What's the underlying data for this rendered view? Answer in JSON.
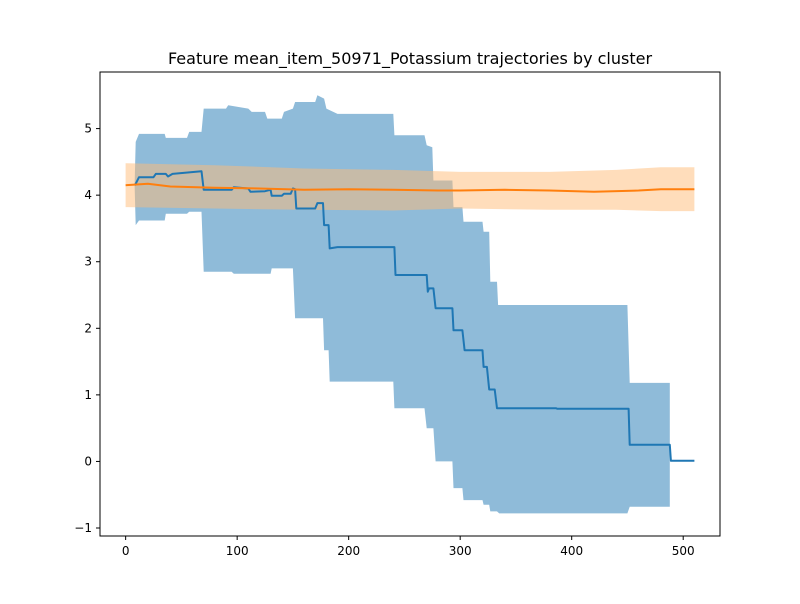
{
  "chart_data": {
    "type": "line",
    "title": "Feature mean_item_50971_Potassium trajectories by cluster",
    "xlabel": "",
    "ylabel": "",
    "xlim": [
      -23,
      533
    ],
    "ylim": [
      -1.12,
      5.85
    ],
    "xticks": [
      0,
      100,
      200,
      300,
      400,
      500
    ],
    "yticks": [
      -1,
      0,
      1,
      2,
      3,
      4,
      5
    ],
    "ytick_labels": [
      "−1",
      "0",
      "1",
      "2",
      "3",
      "4",
      "5"
    ],
    "grid": false,
    "legend": "none",
    "series": [
      {
        "color": "#1f77b4",
        "band_color": "#1f77b4",
        "line": [
          [
            8,
            4.15
          ],
          [
            9,
            4.17
          ],
          [
            12,
            4.27
          ],
          [
            25,
            4.27
          ],
          [
            27,
            4.32
          ],
          [
            36,
            4.32
          ],
          [
            38,
            4.28
          ],
          [
            42,
            4.32
          ],
          [
            68,
            4.36
          ],
          [
            70,
            4.08
          ],
          [
            95,
            4.08
          ],
          [
            97,
            4.12
          ],
          [
            110,
            4.1
          ],
          [
            112,
            4.05
          ],
          [
            125,
            4.06
          ],
          [
            130,
            4.08
          ],
          [
            131,
            3.99
          ],
          [
            140,
            3.99
          ],
          [
            142,
            4.02
          ],
          [
            148,
            4.02
          ],
          [
            150,
            4.1
          ],
          [
            152,
            4.09
          ],
          [
            153,
            3.8
          ],
          [
            170,
            3.8
          ],
          [
            172,
            3.88
          ],
          [
            177,
            3.88
          ],
          [
            178,
            3.55
          ],
          [
            182,
            3.55
          ],
          [
            183,
            3.2
          ],
          [
            190,
            3.22
          ],
          [
            241,
            3.22
          ],
          [
            242,
            2.8
          ],
          [
            270,
            2.8
          ],
          [
            271,
            2.55
          ],
          [
            272,
            2.6
          ],
          [
            276,
            2.6
          ],
          [
            278,
            2.3
          ],
          [
            293,
            2.3
          ],
          [
            294,
            1.97
          ],
          [
            302,
            1.97
          ],
          [
            304,
            1.67
          ],
          [
            320,
            1.67
          ],
          [
            321,
            1.42
          ],
          [
            324,
            1.42
          ],
          [
            326,
            1.08
          ],
          [
            331,
            1.08
          ],
          [
            333,
            0.8
          ],
          [
            386,
            0.8
          ],
          [
            387,
            0.79
          ],
          [
            451,
            0.79
          ],
          [
            452,
            0.25
          ],
          [
            488,
            0.25
          ],
          [
            489,
            0.01
          ],
          [
            510,
            0.01
          ]
        ],
        "upper": [
          [
            8,
            4.15
          ],
          [
            9,
            4.8
          ],
          [
            12,
            4.92
          ],
          [
            35,
            4.92
          ],
          [
            36,
            4.86
          ],
          [
            55,
            4.86
          ],
          [
            57,
            4.95
          ],
          [
            68,
            4.95
          ],
          [
            70,
            5.3
          ],
          [
            90,
            5.3
          ],
          [
            92,
            5.35
          ],
          [
            110,
            5.3
          ],
          [
            113,
            5.25
          ],
          [
            125,
            5.25
          ],
          [
            127,
            5.15
          ],
          [
            140,
            5.15
          ],
          [
            142,
            5.25
          ],
          [
            150,
            5.3
          ],
          [
            152,
            5.4
          ],
          [
            170,
            5.4
          ],
          [
            172,
            5.5
          ],
          [
            178,
            5.45
          ],
          [
            180,
            5.3
          ],
          [
            190,
            5.22
          ],
          [
            240,
            5.22
          ],
          [
            241,
            4.9
          ],
          [
            268,
            4.9
          ],
          [
            270,
            4.75
          ],
          [
            275,
            4.72
          ],
          [
            276,
            4.22
          ],
          [
            293,
            4.22
          ],
          [
            294,
            3.82
          ],
          [
            302,
            3.82
          ],
          [
            303,
            3.6
          ],
          [
            320,
            3.6
          ],
          [
            321,
            3.45
          ],
          [
            326,
            3.45
          ],
          [
            327,
            2.7
          ],
          [
            333,
            2.7
          ],
          [
            334,
            2.35
          ],
          [
            450,
            2.35
          ],
          [
            452,
            1.18
          ],
          [
            488,
            1.18
          ]
        ],
        "lower": [
          [
            8,
            4.15
          ],
          [
            9,
            3.55
          ],
          [
            12,
            3.62
          ],
          [
            35,
            3.62
          ],
          [
            36,
            3.72
          ],
          [
            55,
            3.72
          ],
          [
            57,
            3.75
          ],
          [
            68,
            3.75
          ],
          [
            70,
            2.85
          ],
          [
            95,
            2.85
          ],
          [
            97,
            2.82
          ],
          [
            130,
            2.82
          ],
          [
            131,
            2.9
          ],
          [
            150,
            2.9
          ],
          [
            152,
            2.15
          ],
          [
            177,
            2.15
          ],
          [
            178,
            1.67
          ],
          [
            182,
            1.67
          ],
          [
            183,
            1.2
          ],
          [
            240,
            1.2
          ],
          [
            241,
            0.8
          ],
          [
            268,
            0.8
          ],
          [
            270,
            0.5
          ],
          [
            276,
            0.5
          ],
          [
            278,
            0.0
          ],
          [
            293,
            0.0
          ],
          [
            294,
            -0.4
          ],
          [
            302,
            -0.4
          ],
          [
            303,
            -0.58
          ],
          [
            320,
            -0.58
          ],
          [
            321,
            -0.65
          ],
          [
            326,
            -0.65
          ],
          [
            327,
            -0.75
          ],
          [
            333,
            -0.75
          ],
          [
            335,
            -0.78
          ],
          [
            450,
            -0.78
          ],
          [
            452,
            -0.68
          ],
          [
            488,
            -0.68
          ]
        ]
      },
      {
        "color": "#ff7f0e",
        "band_color": "#ffbb78",
        "line": [
          [
            0,
            4.15
          ],
          [
            20,
            4.17
          ],
          [
            40,
            4.13
          ],
          [
            80,
            4.11
          ],
          [
            120,
            4.1
          ],
          [
            160,
            4.08
          ],
          [
            200,
            4.09
          ],
          [
            240,
            4.08
          ],
          [
            280,
            4.07
          ],
          [
            300,
            4.07
          ],
          [
            340,
            4.08
          ],
          [
            380,
            4.07
          ],
          [
            420,
            4.05
          ],
          [
            460,
            4.07
          ],
          [
            480,
            4.09
          ],
          [
            510,
            4.09
          ]
        ],
        "upper": [
          [
            0,
            4.48
          ],
          [
            80,
            4.45
          ],
          [
            160,
            4.4
          ],
          [
            240,
            4.38
          ],
          [
            300,
            4.35
          ],
          [
            380,
            4.35
          ],
          [
            440,
            4.38
          ],
          [
            480,
            4.42
          ],
          [
            510,
            4.42
          ]
        ],
        "lower": [
          [
            0,
            3.82
          ],
          [
            80,
            3.8
          ],
          [
            160,
            3.78
          ],
          [
            240,
            3.77
          ],
          [
            300,
            3.8
          ],
          [
            380,
            3.78
          ],
          [
            440,
            3.78
          ],
          [
            480,
            3.76
          ],
          [
            510,
            3.76
          ]
        ]
      }
    ]
  }
}
